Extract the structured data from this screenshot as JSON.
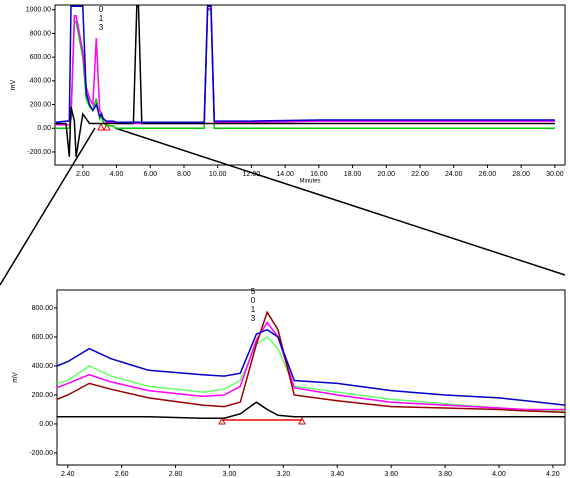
{
  "chart_data": [
    {
      "type": "line",
      "x_label": "Minutes",
      "y_label": "mV",
      "peak_labels": [
        "0",
        "1",
        "3"
      ],
      "x": [
        0.4,
        1.0,
        1.2,
        1.3,
        1.5,
        1.6,
        2.0,
        2.2,
        2.4,
        2.6,
        2.8,
        3.0,
        3.1,
        3.2,
        3.4,
        3.8,
        4.0,
        5.0,
        5.2,
        5.3,
        5.5,
        6.0,
        9.2,
        9.4,
        9.6,
        9.8,
        10.0,
        12.0,
        16.0,
        20.0,
        30.0
      ],
      "xlim": [
        0.35,
        30.6
      ],
      "ylim": [
        -310,
        1040
      ],
      "xticks": [
        {
          "value": 2,
          "label": "2.00"
        },
        {
          "value": 4,
          "label": "4.00"
        },
        {
          "value": 6,
          "label": "6.00"
        },
        {
          "value": 8,
          "label": "8.00"
        },
        {
          "value": 10,
          "label": "10.00"
        },
        {
          "value": 12,
          "label": "12.00"
        },
        {
          "value": 14,
          "label": "14.00"
        },
        {
          "value": 16,
          "label": "16.00"
        },
        {
          "value": 18,
          "label": "18.00"
        },
        {
          "value": 20,
          "label": "20.00"
        },
        {
          "value": 22,
          "label": "22.00"
        },
        {
          "value": 24,
          "label": "24.00"
        },
        {
          "value": 26,
          "label": "26.00"
        },
        {
          "value": 28,
          "label": "28.00"
        },
        {
          "value": 30,
          "label": "30.00"
        }
      ],
      "yticks": [
        {
          "value": -200,
          "label": "-200.00"
        },
        {
          "value": 0,
          "label": "0.00"
        },
        {
          "value": 200,
          "label": "200.00"
        },
        {
          "value": 400,
          "label": "400.00"
        },
        {
          "value": 600,
          "label": "600.00"
        },
        {
          "value": 800,
          "label": "800.00"
        },
        {
          "value": 1000,
          "label": "1000.00"
        }
      ],
      "series": [
        {
          "color": "#00cc00",
          "values": [
            0,
            0,
            0,
            100,
            900,
            900,
            600,
            250,
            180,
            150,
            250,
            80,
            100,
            60,
            20,
            20,
            0,
            0,
            0,
            0,
            0,
            0,
            0,
            1000,
            1000,
            0,
            0,
            0,
            0,
            0,
            0
          ]
        },
        {
          "color": "#ff00ff",
          "values": [
            30,
            30,
            30,
            80,
            950,
            950,
            650,
            350,
            250,
            200,
            760,
            150,
            130,
            90,
            50,
            50,
            40,
            40,
            40,
            40,
            40,
            40,
            40,
            1010,
            1010,
            50,
            50,
            50,
            60,
            60,
            60
          ]
        },
        {
          "color": "#000000",
          "values": [
            40,
            40,
            -240,
            180,
            60,
            -240,
            120,
            80,
            40,
            40,
            40,
            40,
            40,
            40,
            40,
            40,
            40,
            40,
            1030,
            1030,
            40,
            40,
            40,
            40,
            40,
            40,
            40,
            40,
            40,
            40,
            40
          ]
        },
        {
          "color": "#0000cc",
          "values": [
            50,
            60,
            60,
            1030,
            1030,
            1030,
            1030,
            300,
            200,
            150,
            200,
            100,
            120,
            80,
            60,
            60,
            50,
            50,
            50,
            50,
            50,
            50,
            50,
            1030,
            1030,
            60,
            60,
            60,
            70,
            70,
            70
          ]
        }
      ]
    },
    {
      "type": "line",
      "x_label": "Minutes",
      "y_label": "mV",
      "peak_labels": [
        "5",
        "0",
        "1",
        "3"
      ],
      "x": [
        2.36,
        2.4,
        2.48,
        2.56,
        2.7,
        2.9,
        2.98,
        3.04,
        3.1,
        3.14,
        3.18,
        3.24,
        3.4,
        3.6,
        3.8,
        4.0,
        4.1,
        4.245
      ],
      "xlim": [
        2.36,
        4.245
      ],
      "ylim": [
        -283,
        924
      ],
      "xticks": [
        {
          "value": 2.4,
          "label": "2.40"
        },
        {
          "value": 2.6,
          "label": "2.60"
        },
        {
          "value": 2.8,
          "label": "2.80"
        },
        {
          "value": 3.0,
          "label": "3.00"
        },
        {
          "value": 3.2,
          "label": "3.20"
        },
        {
          "value": 3.4,
          "label": "3.40"
        },
        {
          "value": 3.6,
          "label": "3.60"
        },
        {
          "value": 3.8,
          "label": "3.80"
        },
        {
          "value": 4.0,
          "label": "4.00"
        },
        {
          "value": 4.2,
          "label": "4.20"
        }
      ],
      "yticks": [
        {
          "value": -200,
          "label": "-200.00"
        },
        {
          "value": 0,
          "label": "0.00"
        },
        {
          "value": 200,
          "label": "200.00"
        },
        {
          "value": 400,
          "label": "400.00"
        },
        {
          "value": 600,
          "label": "600.00"
        },
        {
          "value": 800,
          "label": "800.00"
        }
      ],
      "series": [
        {
          "color": "#66ff66",
          "values": [
            280,
            300,
            400,
            330,
            260,
            220,
            240,
            300,
            550,
            600,
            520,
            260,
            220,
            170,
            140,
            110,
            90,
            90
          ]
        },
        {
          "color": "#ff00ff",
          "values": [
            250,
            280,
            340,
            290,
            230,
            190,
            200,
            260,
            580,
            700,
            600,
            250,
            200,
            150,
            130,
            110,
            100,
            100
          ]
        },
        {
          "color": "#990000",
          "values": [
            170,
            200,
            280,
            240,
            180,
            130,
            120,
            150,
            550,
            770,
            650,
            200,
            160,
            120,
            110,
            100,
            90,
            80
          ]
        },
        {
          "color": "#000000",
          "values": [
            50,
            50,
            50,
            50,
            50,
            40,
            40,
            70,
            150,
            100,
            60,
            50,
            50,
            50,
            50,
            50,
            50,
            50
          ]
        },
        {
          "color": "#0000cc",
          "values": [
            400,
            430,
            520,
            450,
            370,
            340,
            330,
            350,
            620,
            650,
            600,
            300,
            280,
            230,
            200,
            180,
            160,
            130
          ]
        }
      ]
    }
  ]
}
